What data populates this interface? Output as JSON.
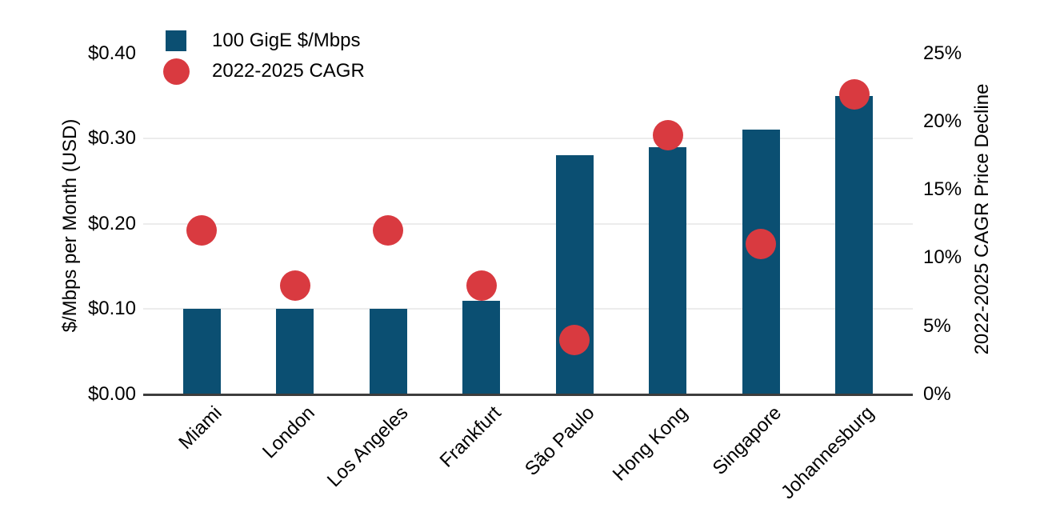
{
  "chart_data": {
    "type": "bar",
    "subtype": "dual-axis combo: bars (left axis) + scatter dots (right axis)",
    "title": "",
    "categories": [
      "Miami",
      "London",
      "Los Angeles",
      "Frankfurt",
      "São Paulo",
      "Hong Kong",
      "Singapore",
      "Johannesburg"
    ],
    "series": [
      {
        "name": "100 GigE $/Mbps",
        "type": "bar",
        "axis": "left",
        "color": "#0b4f72",
        "values": [
          0.1,
          0.1,
          0.1,
          0.11,
          0.28,
          0.29,
          0.31,
          0.35
        ]
      },
      {
        "name": "2022-2025 CAGR",
        "type": "scatter",
        "axis": "right",
        "color": "#d93a40",
        "values": [
          12,
          8,
          12,
          8,
          4,
          19,
          11,
          22
        ]
      }
    ],
    "left_axis": {
      "label": "$/Mbps per Month (USD)",
      "tick_labels": [
        "$0.00",
        "$0.10",
        "$0.20",
        "$0.30",
        "$0.40"
      ],
      "tick_values": [
        0,
        0.1,
        0.2,
        0.3,
        0.4
      ],
      "range": [
        0,
        0.4
      ]
    },
    "right_axis": {
      "label": "2022-2025 CAGR Price Decline",
      "tick_labels": [
        "0%",
        "5%",
        "10%",
        "15%",
        "20%",
        "25%"
      ],
      "tick_values": [
        0,
        5,
        10,
        15,
        20,
        25
      ],
      "range": [
        0,
        25
      ]
    },
    "legend": {
      "position": "top-left",
      "items": [
        {
          "label": "100 GigE $/Mbps",
          "marker": "square",
          "color": "#0b4f72"
        },
        {
          "label": "2022-2025 CAGR",
          "marker": "circle",
          "color": "#d93a40"
        }
      ]
    },
    "grid": {
      "horizontal_gridlines_at_left_values": [
        0.1,
        0.2,
        0.3
      ],
      "color": "#ececec"
    }
  },
  "colors": {
    "background": "#ffffff",
    "bar": "#0b4f72",
    "dot": "#d93a40",
    "gridline": "#ececec",
    "axis_line": "#3d3d3d",
    "text": "#000000"
  }
}
